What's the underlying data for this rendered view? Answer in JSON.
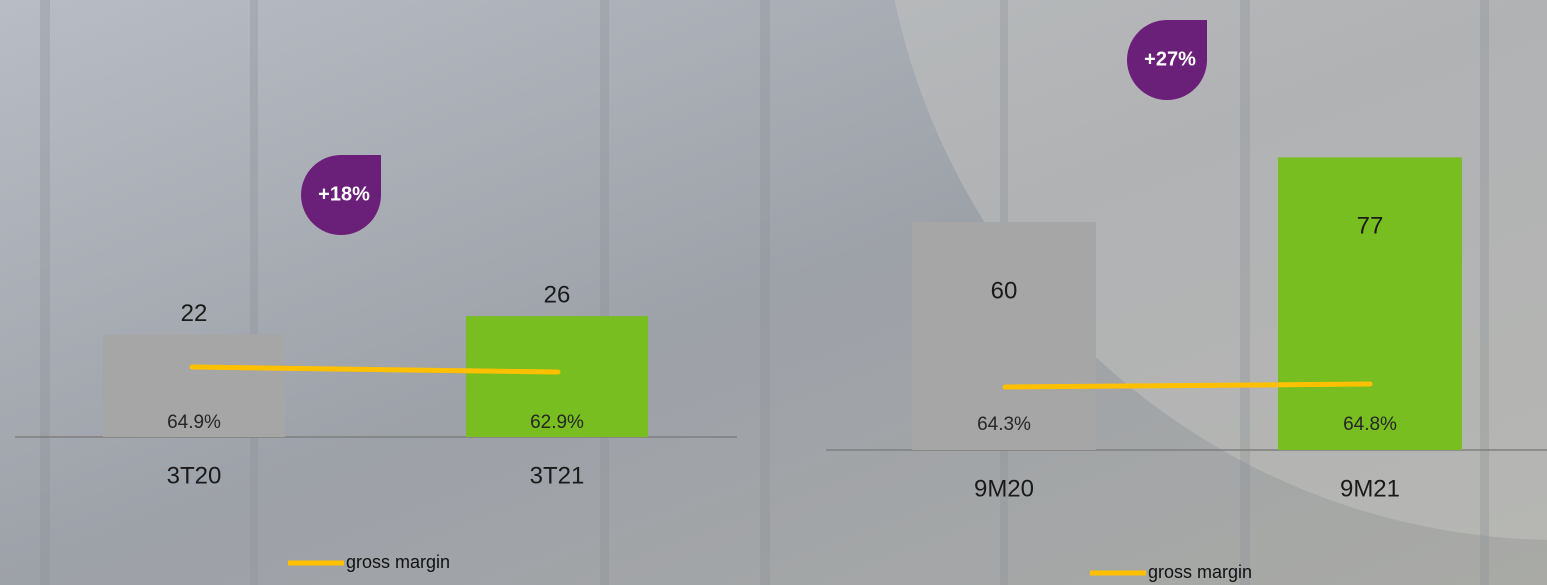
{
  "chart_data": [
    {
      "type": "bar",
      "categories": [
        "3T20",
        "3T21"
      ],
      "values": [
        22,
        26
      ],
      "colors": [
        "#a6a6a6",
        "#78be20"
      ],
      "line": {
        "name": "gross margin",
        "color": "#ffc000",
        "values": [
          64.9,
          62.9
        ],
        "value_labels": [
          "64.9%",
          "62.9%"
        ]
      },
      "annotation": "+18%"
    },
    {
      "type": "bar",
      "categories": [
        "9M20",
        "9M21"
      ],
      "values": [
        60,
        77
      ],
      "colors": [
        "#a6a6a6",
        "#78be20"
      ],
      "line": {
        "name": "gross margin",
        "color": "#ffc000",
        "values": [
          64.3,
          64.8
        ],
        "value_labels": [
          "64.3%",
          "64.8%"
        ]
      },
      "annotation": "+27%"
    }
  ]
}
